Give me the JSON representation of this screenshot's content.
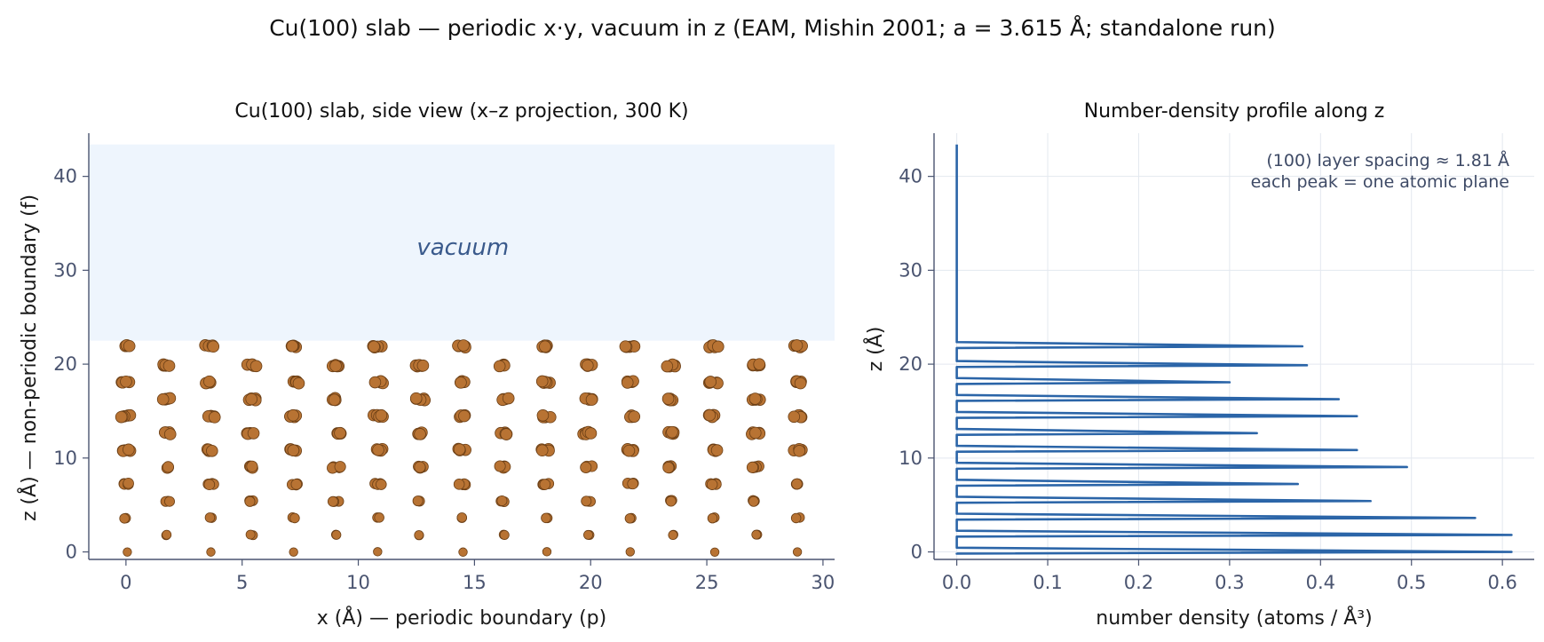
{
  "figure": {
    "suptitle": "Cu(100) slab — periodic x·y, vacuum in z   (EAM, Mishin 2001; a = 3.615 Å; standalone run)"
  },
  "colors": {
    "atom_fill": "#b87333",
    "atom_edge": "#6b3f16",
    "vacuum_fill": "#eef5fd",
    "vacuum_text": "#3a5a8c",
    "profile_line": "#2b65a8",
    "axis_color": "#4a5470",
    "grid_color": "#e3e8ef"
  },
  "chart_data": [
    {
      "type": "scatter",
      "title": "Cu(100) slab, side view  (x–z projection, 300 K)",
      "xlabel": "x  (Å)   — periodic boundary (p)",
      "ylabel": "z  (Å)   — non-periodic boundary (f)",
      "xlim": [
        -1.6,
        30.5
      ],
      "ylim": [
        -0.8,
        44.6
      ],
      "xticks": [
        0,
        5,
        10,
        15,
        20,
        25,
        30
      ],
      "yticks": [
        0,
        10,
        20,
        30,
        40
      ],
      "grid": false,
      "vacuum_region": {
        "z": [
          22.5,
          43.4
        ],
        "label": "vacuum"
      },
      "atom_columns_x_even": [
        0.0,
        3.615,
        7.23,
        10.845,
        14.46,
        18.075,
        21.69,
        25.305,
        28.92
      ],
      "atom_columns_x_odd": [
        1.8075,
        5.4225,
        9.0375,
        12.6525,
        16.2675,
        19.8825,
        23.4975,
        27.1125
      ],
      "layer_z": [
        0.0,
        1.81,
        3.62,
        5.42,
        7.23,
        9.04,
        10.85,
        12.65,
        14.46,
        16.27,
        18.07,
        19.88,
        21.9
      ],
      "thermal_jitter_A": 0.15
    },
    {
      "type": "line",
      "title": "Number-density profile along z",
      "xlabel": "number density  (atoms / Å³)",
      "ylabel": "z  (Å)",
      "xlim": [
        -0.025,
        0.635
      ],
      "ylim": [
        -0.8,
        44.6
      ],
      "xticks": [
        0.0,
        0.1,
        0.2,
        0.3,
        0.4,
        0.5,
        0.6
      ],
      "yticks": [
        0,
        10,
        20,
        30,
        40
      ],
      "grid": true,
      "annotation_lines": [
        "(100) layer spacing ≈ 1.81 Å",
        "each peak = one atomic plane"
      ],
      "peaks": [
        {
          "z": 0.0,
          "density": 0.61
        },
        {
          "z": 1.81,
          "density": 0.61
        },
        {
          "z": 3.62,
          "density": 0.57
        },
        {
          "z": 5.42,
          "density": 0.455
        },
        {
          "z": 7.23,
          "density": 0.375
        },
        {
          "z": 9.04,
          "density": 0.495
        },
        {
          "z": 10.85,
          "density": 0.44
        },
        {
          "z": 12.65,
          "density": 0.33
        },
        {
          "z": 14.46,
          "density": 0.44
        },
        {
          "z": 16.27,
          "density": 0.42
        },
        {
          "z": 18.07,
          "density": 0.3
        },
        {
          "z": 19.88,
          "density": 0.385
        },
        {
          "z": 21.9,
          "density": 0.38
        }
      ],
      "z_max": 43.4
    }
  ]
}
